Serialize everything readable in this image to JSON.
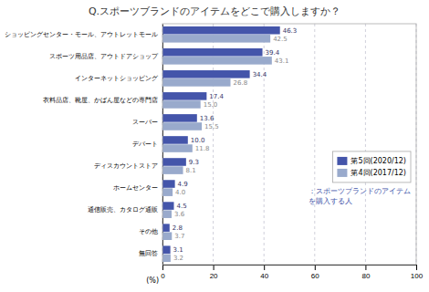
{
  "chart_data": {
    "type": "bar",
    "orientation": "horizontal",
    "title": "Q.スポーツブランドのアイテムをどこで購入しますか？",
    "categories": [
      "ショッピングセンター・モール、アウトレットモール",
      "スポーツ用品店、アウトドアショップ",
      "インターネットショッピング",
      "衣料品店、靴屋、かばん屋などの専門店",
      "スーパー",
      "デパート",
      "ディスカウントストア",
      "ホームセンター",
      "通信販売、カタログ通販",
      "その他",
      "無回答"
    ],
    "series": [
      {
        "name": "第5回(2020/12)",
        "color": "#4455aa",
        "values": [
          46.3,
          39.4,
          34.4,
          17.4,
          13.6,
          10.0,
          9.3,
          4.9,
          4.5,
          2.8,
          3.1
        ],
        "value_labels": [
          "46.3",
          "39.4",
          "34.4",
          "17.4",
          "13.6",
          "10.0",
          "9.3",
          "4.9",
          "4.5",
          "2.8",
          "3.1"
        ]
      },
      {
        "name": "第4回(2017/12)",
        "color": "#99aacc",
        "values": [
          42.5,
          43.1,
          26.8,
          15.0,
          15.5,
          11.8,
          8.1,
          4.0,
          3.6,
          3.7,
          3.2
        ],
        "value_labels": [
          "42.5",
          "43.1",
          "26.8",
          "15.0",
          "15.5",
          "11.8",
          "8.1",
          "4.0",
          "3.6",
          "3.7",
          "3.2"
        ]
      }
    ],
    "xlim": [
      0,
      100
    ],
    "xticks": [
      0,
      20,
      40,
      60,
      80,
      100
    ],
    "xlabel": "(%)",
    "annotations": [
      "：スポーツブランドのアイテム",
      "を購入する人"
    ],
    "grid": true,
    "legend": "lower right",
    "data_labels": true
  }
}
